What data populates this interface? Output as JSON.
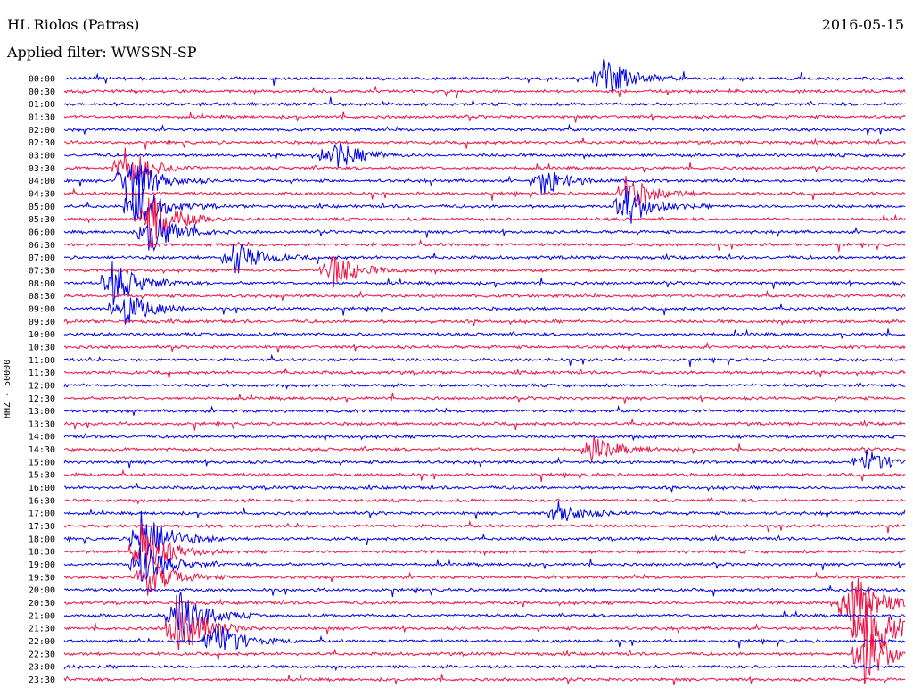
{
  "header": {
    "station": "HL Riolos (Patras)",
    "date": "2016-05-15",
    "filter": "Applied filter: WWSSN-SP"
  },
  "colors": {
    "line_a": "#0000ee",
    "line_b": "#ee1144"
  },
  "chart_data": {
    "type": "line",
    "title": "HL Riolos (Patras)",
    "ylabel": "HHZ - 50000",
    "rows": [
      "00:00",
      "00:30",
      "01:00",
      "01:30",
      "02:00",
      "02:30",
      "03:00",
      "03:30",
      "04:00",
      "04:30",
      "05:00",
      "05:30",
      "06:00",
      "06:30",
      "07:00",
      "07:30",
      "08:00",
      "08:30",
      "09:00",
      "09:30",
      "10:00",
      "10:30",
      "11:00",
      "11:30",
      "12:00",
      "12:30",
      "13:00",
      "13:30",
      "14:00",
      "14:30",
      "15:00",
      "15:30",
      "16:00",
      "16:30",
      "17:00",
      "17:30",
      "18:00",
      "18:30",
      "19:00",
      "19:30",
      "20:00",
      "20:30",
      "21:00",
      "21:30",
      "22:00",
      "22:30",
      "23:00",
      "23:30"
    ],
    "trace_colors": [
      "blue",
      "red"
    ],
    "events": [
      {
        "row": 0,
        "minute": 19.2,
        "amp": 1.2
      },
      {
        "row": 6,
        "minute": 9.5,
        "amp": 0.9
      },
      {
        "row": 7,
        "minute": 2.1,
        "amp": 1.3
      },
      {
        "row": 8,
        "minute": 2.2,
        "amp": 1.6
      },
      {
        "row": 8,
        "minute": 17.0,
        "amp": 0.8
      },
      {
        "row": 9,
        "minute": 20.0,
        "amp": 1.0
      },
      {
        "row": 10,
        "minute": 2.5,
        "amp": 1.4
      },
      {
        "row": 10,
        "minute": 20.0,
        "amp": 1.1
      },
      {
        "row": 11,
        "minute": 3.0,
        "amp": 1.6
      },
      {
        "row": 12,
        "minute": 3.0,
        "amp": 1.2
      },
      {
        "row": 14,
        "minute": 6.0,
        "amp": 1.0
      },
      {
        "row": 15,
        "minute": 9.5,
        "amp": 1.0
      },
      {
        "row": 16,
        "minute": 1.7,
        "amp": 1.2
      },
      {
        "row": 18,
        "minute": 2.0,
        "amp": 1.1
      },
      {
        "row": 29,
        "minute": 18.8,
        "amp": 0.7
      },
      {
        "row": 30,
        "minute": 28.5,
        "amp": 0.7
      },
      {
        "row": 34,
        "minute": 17.6,
        "amp": 0.6
      },
      {
        "row": 36,
        "minute": 2.7,
        "amp": 1.8
      },
      {
        "row": 37,
        "minute": 2.7,
        "amp": 1.6
      },
      {
        "row": 38,
        "minute": 2.7,
        "amp": 1.2
      },
      {
        "row": 39,
        "minute": 2.9,
        "amp": 1.1
      },
      {
        "row": 41,
        "minute": 28.0,
        "amp": 2.0
      },
      {
        "row": 42,
        "minute": 4.0,
        "amp": 1.7
      },
      {
        "row": 43,
        "minute": 4.0,
        "amp": 1.8
      },
      {
        "row": 43,
        "minute": 28.5,
        "amp": 2.2
      },
      {
        "row": 44,
        "minute": 5.3,
        "amp": 1.2
      },
      {
        "row": 45,
        "minute": 28.5,
        "amp": 1.6
      }
    ]
  }
}
